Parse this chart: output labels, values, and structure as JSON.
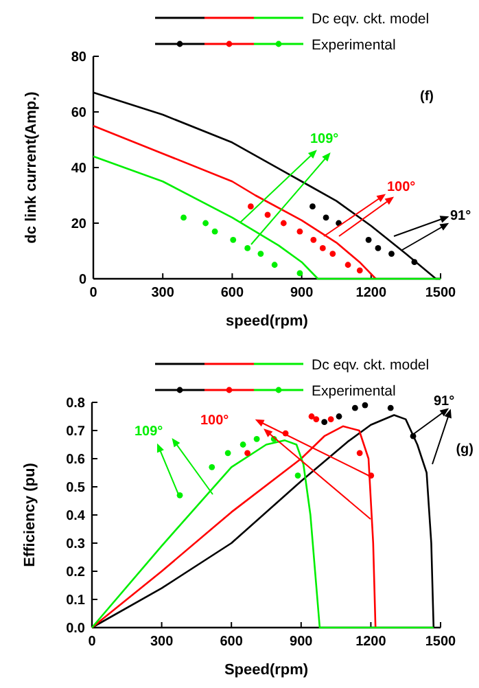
{
  "chart_data": [
    {
      "type": "line",
      "xlabel": "speed(rpm)",
      "ylabel": "dc link current(Amp.)",
      "xlim": [
        0,
        1500
      ],
      "xticks": [
        0,
        300,
        600,
        900,
        1200,
        1500
      ],
      "ylim": [
        0,
        80
      ],
      "yticks": [
        0,
        20,
        40,
        60,
        80
      ],
      "legend": "top right",
      "line_style": "solid",
      "series": [
        {
          "color": "#000000",
          "marker": "none",
          "x": [
            0,
            300,
            600,
            900,
            1050,
            1200,
            1350,
            1480,
            1500
          ],
          "values": [
            67,
            59,
            49,
            35,
            28,
            19,
            9,
            0,
            0
          ]
        },
        {
          "color": "#ff0000",
          "marker": "none",
          "x": [
            0,
            300,
            600,
            700,
            900,
            1050,
            1150,
            1220
          ],
          "values": [
            55,
            45,
            35,
            30,
            21,
            13,
            6,
            0
          ]
        },
        {
          "name": "Dc eqv. ckt. model",
          "color": "#00ee00",
          "marker": "none",
          "x": [
            0,
            300,
            600,
            800,
            900,
            970,
            1500
          ],
          "values": [
            44,
            35,
            22,
            12,
            6,
            0,
            0
          ]
        },
        {
          "type": "scatter",
          "color": "#000000",
          "marker": "circle",
          "x": [
            947,
            1005,
            1060,
            1189,
            1230,
            1288,
            1387
          ],
          "values": [
            26,
            22,
            20,
            14,
            11,
            9,
            6
          ]
        },
        {
          "type": "scatter",
          "color": "#ff0000",
          "marker": "circle",
          "x": [
            680,
            753,
            822,
            892,
            951,
            991,
            1034,
            1100,
            1151
          ],
          "values": [
            26,
            23,
            20,
            17,
            14,
            11,
            9,
            5,
            3
          ]
        },
        {
          "name": "Experimental",
          "type": "scatter",
          "color": "#00ee00",
          "marker": "circle",
          "x": [
            390,
            485,
            525,
            604,
            666,
            723,
            783,
            892
          ],
          "values": [
            22,
            20,
            17,
            14,
            11,
            9,
            5,
            2
          ]
        }
      ],
      "annotations": [
        "91°",
        "100°",
        "109°",
        "(f)"
      ]
    },
    {
      "type": "line",
      "xlabel": "Speed(rpm)",
      "ylabel": "Efficiency (pu)",
      "xlim": [
        0,
        1500
      ],
      "xticks": [
        0,
        300,
        600,
        900,
        1200,
        1500
      ],
      "ylim": [
        0,
        0.8
      ],
      "yticks": [
        {
          "value": 0,
          "label": "0.0"
        },
        0.1,
        0.2,
        0.3,
        0.4,
        0.5,
        0.6,
        0.7,
        0.8
      ],
      "legend": "top right",
      "line_style": "solid",
      "series": [
        {
          "color": "#000000",
          "marker": "none",
          "x": [
            0,
            300,
            600,
            900,
            1100,
            1200,
            1300,
            1350,
            1400,
            1440,
            1460,
            1470
          ],
          "values": [
            0,
            0.14,
            0.3,
            0.52,
            0.66,
            0.72,
            0.755,
            0.74,
            0.65,
            0.55,
            0.3,
            0
          ]
        },
        {
          "color": "#ff0000",
          "marker": "none",
          "x": [
            0,
            300,
            600,
            900,
            1000,
            1080,
            1150,
            1190,
            1210,
            1220
          ],
          "values": [
            0,
            0.2,
            0.41,
            0.6,
            0.68,
            0.715,
            0.7,
            0.6,
            0.3,
            0
          ]
        },
        {
          "name": "Dc eqv. ckt. model",
          "color": "#00ee00",
          "marker": "none",
          "x": [
            0,
            300,
            600,
            750,
            830,
            880,
            910,
            940,
            960,
            980,
            1470
          ],
          "values": [
            0,
            0.29,
            0.57,
            0.65,
            0.665,
            0.65,
            0.58,
            0.4,
            0.2,
            0,
            0
          ]
        },
        {
          "type": "scatter",
          "color": "#000000",
          "marker": "circle",
          "x": [
            1000,
            1063,
            1132,
            1175,
            1285,
            1382
          ],
          "values": [
            0.73,
            0.75,
            0.78,
            0.79,
            0.78,
            0.68
          ]
        },
        {
          "type": "scatter",
          "color": "#ff0000",
          "marker": "circle",
          "x": [
            669,
            833,
            945,
            965,
            1028,
            1152,
            1201
          ],
          "values": [
            0.62,
            0.69,
            0.75,
            0.74,
            0.74,
            0.62,
            0.54
          ]
        },
        {
          "name": "Experimental",
          "type": "scatter",
          "color": "#00ee00",
          "marker": "circle",
          "x": [
            378,
            516,
            585,
            650,
            709,
            783,
            886
          ],
          "values": [
            0.47,
            0.57,
            0.62,
            0.65,
            0.67,
            0.67,
            0.54
          ]
        }
      ],
      "annotations": [
        "91°",
        "100°",
        "109°",
        "(g)"
      ]
    }
  ]
}
